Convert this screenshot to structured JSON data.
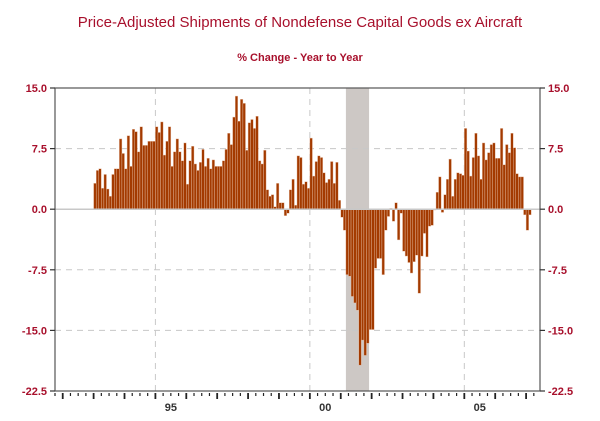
{
  "chart_data": {
    "type": "bar",
    "title": "Price-Adjusted Shipments of Nondefense Capital Goods ex Aircraft",
    "subtitle": "% Change - Year to Year",
    "xlabel": "",
    "ylabel": "",
    "frequency": "monthly",
    "start_year": 1993,
    "start_month": 1,
    "xlim": [
      1991.75,
      2007.45
    ],
    "ylim": [
      -22.5,
      15.0
    ],
    "grid": true,
    "y_ticks": [
      15.0,
      7.5,
      0.0,
      -7.5,
      -15.0,
      -22.5
    ],
    "y_tick_labels": [
      "15.0",
      "7.5",
      "0.0",
      "-7.5",
      "-15.0",
      "-22.5"
    ],
    "x_tick_labels": [
      {
        "year": 1995,
        "label": "95"
      },
      {
        "year": 2000,
        "label": "00"
      },
      {
        "year": 2005,
        "label": "05"
      }
    ],
    "recession_shading": [
      {
        "from": 2001.167,
        "to": 2001.917
      }
    ],
    "series": [
      {
        "name": "% Change - Year to Year",
        "color": "#a33a00",
        "values": [
          3.2,
          4.8,
          5.0,
          2.6,
          4.3,
          2.5,
          1.6,
          4.3,
          5.0,
          5.0,
          8.7,
          6.9,
          5.0,
          9.1,
          5.3,
          9.9,
          9.6,
          7.1,
          10.2,
          7.9,
          7.9,
          8.4,
          8.4,
          8.4,
          10.2,
          9.5,
          10.8,
          6.7,
          8.4,
          10.2,
          5.3,
          7.1,
          8.7,
          7.1,
          6.0,
          8.2,
          3.1,
          6.0,
          7.8,
          5.6,
          4.8,
          5.8,
          7.4,
          5.3,
          6.3,
          5.0,
          6.1,
          5.3,
          5.3,
          5.3,
          6.0,
          7.4,
          9.4,
          8.0,
          11.4,
          14.0,
          10.9,
          13.6,
          13.1,
          7.3,
          10.7,
          11.1,
          10.0,
          11.5,
          6.0,
          5.6,
          7.3,
          2.4,
          1.6,
          1.8,
          0.3,
          3.2,
          0.8,
          0.8,
          -0.8,
          -0.5,
          2.4,
          3.7,
          0.5,
          6.6,
          6.4,
          3.1,
          3.4,
          2.6,
          8.8,
          4.1,
          5.9,
          6.6,
          6.4,
          4.5,
          3.3,
          3.7,
          5.9,
          3.2,
          5.8,
          1.1,
          -1.0,
          -2.6,
          -8.1,
          -8.3,
          -10.8,
          -11.6,
          -12.5,
          -19.3,
          -16.2,
          -18.1,
          -16.6,
          -14.9,
          -14.9,
          -7.3,
          -6.1,
          -6.1,
          -8.1,
          -2.6,
          -0.9,
          0.1,
          -1.5,
          0.8,
          -3.8,
          -0.5,
          -5.2,
          -5.8,
          -6.6,
          -7.9,
          -6.5,
          -5.7,
          -10.4,
          -5.8,
          -3.0,
          -5.9,
          -2.1,
          -2.0,
          -0.1,
          2.1,
          4.0,
          -0.4,
          1.8,
          3.7,
          6.2,
          1.6,
          3.7,
          4.5,
          4.4,
          4.2,
          10.0,
          7.2,
          4.1,
          6.4,
          9.4,
          6.6,
          3.7,
          8.2,
          6.1,
          7.0,
          8.0,
          8.2,
          6.3,
          6.3,
          10.0,
          5.5,
          8.0,
          7.0,
          9.4,
          7.6,
          4.4,
          4.0,
          4.0,
          -0.7,
          -2.6,
          -0.7
        ]
      }
    ]
  }
}
